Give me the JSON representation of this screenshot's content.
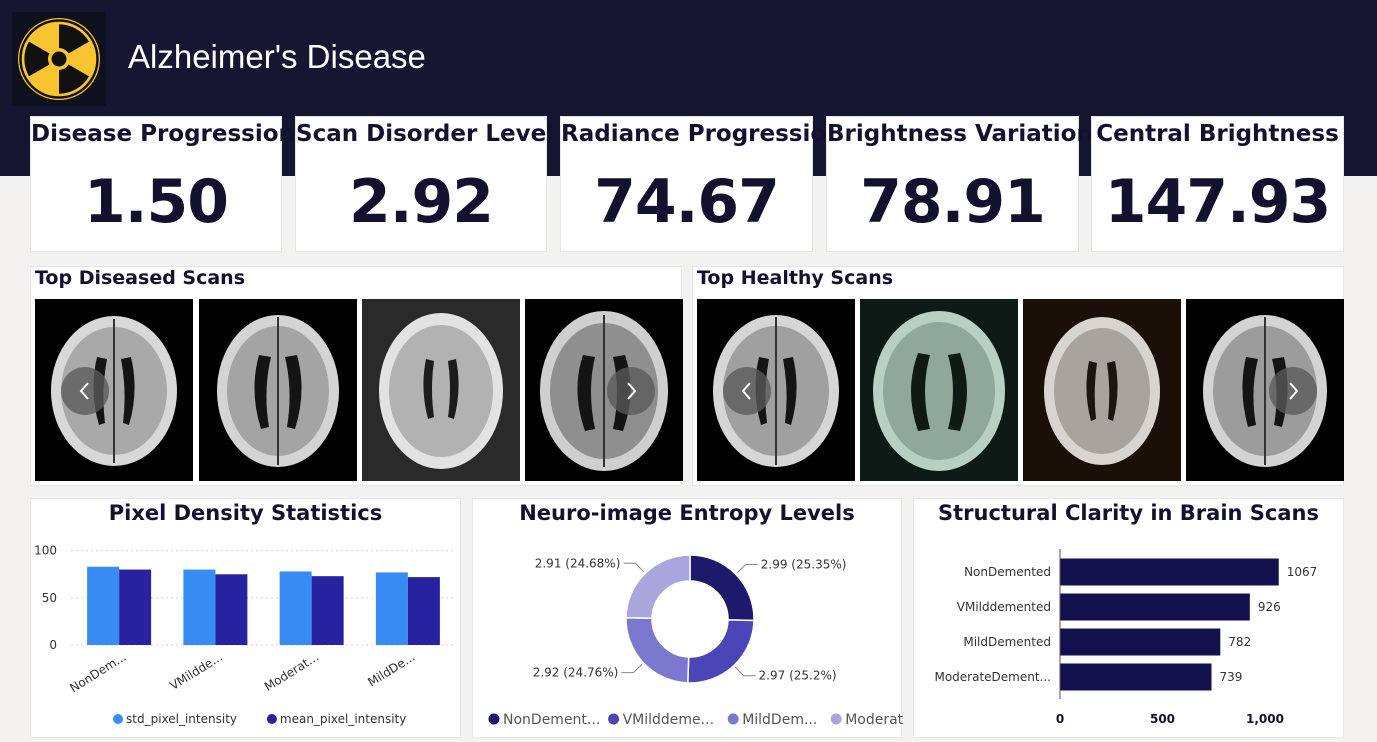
{
  "header": {
    "title": "Alzheimer's Disease",
    "logo": "radiation-icon"
  },
  "kpis": [
    {
      "label": "Disease Progression",
      "value": "1.50"
    },
    {
      "label": "Scan Disorder Level",
      "value": "2.92"
    },
    {
      "label": "Radiance Progression",
      "value": "74.67"
    },
    {
      "label": "Brightness Variation",
      "value": "78.91"
    },
    {
      "label": "Central Brightness",
      "value": "147.93"
    }
  ],
  "galleries": {
    "diseased": {
      "title": "Top Diseased Scans"
    },
    "healthy": {
      "title": "Top Healthy Scans"
    }
  },
  "icons": {
    "prev": "chevron-left-icon",
    "next": "chevron-right-icon"
  },
  "colors": {
    "header_bg": "#151632",
    "navy": "#1a1a54",
    "blue_light": "#3a8cf5",
    "blue_dark": "#2821a0",
    "logo_yellow": "#f8c531"
  },
  "charts": {
    "pixel": {
      "title": "Pixel Density Statistics"
    },
    "entropy": {
      "title": "Neuro-image Entropy Levels"
    },
    "clarity": {
      "title": "Structural Clarity in Brain Scans"
    }
  },
  "chart_data": [
    {
      "type": "bar",
      "title": "Pixel Density Statistics",
      "categories": [
        "NonDem...",
        "VMildde...",
        "Moderat...",
        "MildDe..."
      ],
      "series": [
        {
          "name": "std_pixel_intensity",
          "values": [
            83,
            80,
            78,
            77
          ],
          "color": "#3a8cf5"
        },
        {
          "name": "mean_pixel_intensity",
          "values": [
            80,
            75,
            73,
            72
          ],
          "color": "#2821a0"
        }
      ],
      "yticks": [
        0,
        50,
        100
      ],
      "ylim": [
        0,
        105
      ],
      "legend": "bottom"
    },
    {
      "type": "pie",
      "title": "Neuro-image Entropy Levels",
      "slices": [
        {
          "name": "NonDement...",
          "value": 2.99,
          "label": "2.99 (25.35%)",
          "color": "#1d1a6e"
        },
        {
          "name": "VMilddeme...",
          "value": 2.97,
          "label": "2.97 (25.2%)",
          "color": "#4a46b8"
        },
        {
          "name": "MildDem...",
          "value": 2.92,
          "label": "2.92 (24.76%)",
          "color": "#7b78cf"
        },
        {
          "name": "Moderate...",
          "value": 2.91,
          "label": "2.91 (24.68%)",
          "color": "#a8a6dd"
        }
      ],
      "legend": "bottom"
    },
    {
      "type": "bar",
      "orientation": "horizontal",
      "title": "Structural Clarity in Brain Scans",
      "categories": [
        "NonDemented",
        "VMilddemented",
        "MildDemented",
        "ModerateDement..."
      ],
      "values": [
        1067,
        926,
        782,
        739
      ],
      "value_labels": [
        "1067",
        "926",
        "782",
        "739"
      ],
      "xticks": [
        0,
        500,
        1000
      ],
      "xtick_labels": [
        "0",
        "500",
        "1,000"
      ],
      "xlim": [
        0,
        1000
      ],
      "color": "#12114d"
    }
  ]
}
